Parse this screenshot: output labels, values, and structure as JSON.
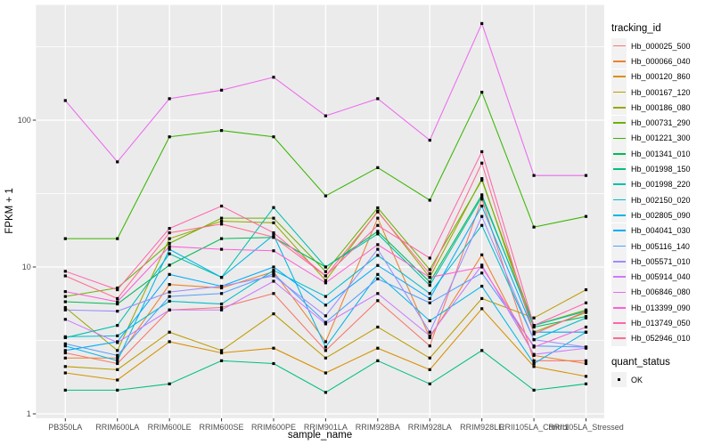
{
  "figure": {
    "background": "#FFFFFF",
    "panel_background": "#EBEBEB",
    "grid_color": "#FFFFFF",
    "tick_mark_color": "#333333",
    "tick_label_color": "#4D4D4D",
    "axis_title_color": "#000000",
    "legend_key_background": "#F2F2F2",
    "point_color": "#000000"
  },
  "chart_data": {
    "type": "line",
    "title": "",
    "xlabel": "sample_name",
    "ylabel": "FPKM + 1",
    "y_scale": "log10",
    "y_ticks": [
      1,
      10,
      100
    ],
    "y_tick_labels": [
      "1",
      "10",
      "100"
    ],
    "y_minor_ticks": [
      3.162,
      31.623,
      316.228
    ],
    "ylim": [
      1,
      600
    ],
    "grid": true,
    "legend_position": "right",
    "point_shape": "filled-square",
    "categories": [
      "PB350LA",
      "RRIM600LA",
      "RRIM600LE",
      "RRIM600SE",
      "RRIM600PE",
      "RRIM901LA",
      "RRIM928BA",
      "RRIM928LA",
      "RRIM928LE",
      "RRII105LA_Control",
      "RRII105LA_Stressed"
    ],
    "series": [
      {
        "name": "Hb_000025_500",
        "color": "#F8766D",
        "values": [
          2.6,
          2.2,
          5.1,
          5.3,
          6.6,
          2.7,
          5.9,
          2.9,
          29,
          2.3,
          2.3
        ]
      },
      {
        "name": "Hb_000066_040",
        "color": "#EA8331",
        "values": [
          2.4,
          2.4,
          7.6,
          7.2,
          9.3,
          3.1,
          21.5,
          3.3,
          12.1,
          2.5,
          2.2
        ]
      },
      {
        "name": "Hb_000120_860",
        "color": "#D89000",
        "values": [
          1.9,
          1.7,
          3.1,
          2.6,
          2.8,
          1.9,
          2.8,
          2.0,
          5.2,
          2.1,
          1.8
        ]
      },
      {
        "name": "Hb_000167_120",
        "color": "#BE9C00",
        "values": [
          2.1,
          2.0,
          3.6,
          2.7,
          4.8,
          2.4,
          3.9,
          2.4,
          6.1,
          4.5,
          7.0
        ]
      },
      {
        "name": "Hb_000186_080",
        "color": "#9CA700",
        "values": [
          5.3,
          2.7,
          15.6,
          20.5,
          20.0,
          8.1,
          24.0,
          8.5,
          40,
          3.6,
          4.9
        ]
      },
      {
        "name": "Hb_000731_290",
        "color": "#6FB000",
        "values": [
          6.3,
          7.2,
          14.5,
          21.5,
          21.5,
          9.3,
          25.3,
          9.6,
          39,
          4.0,
          5.1
        ]
      },
      {
        "name": "Hb_001221_300",
        "color": "#39B600",
        "values": [
          15.6,
          15.6,
          77,
          85,
          77,
          30.5,
          47.5,
          28.5,
          155,
          18.7,
          22.1
        ]
      },
      {
        "name": "Hb_001341_010",
        "color": "#00BA55",
        "values": [
          5.8,
          5.6,
          10.3,
          15.6,
          15.9,
          10.0,
          17.5,
          7.9,
          31,
          3.9,
          4.6
        ]
      },
      {
        "name": "Hb_001998_150",
        "color": "#00BF81",
        "values": [
          1.45,
          1.45,
          1.6,
          2.3,
          2.2,
          1.4,
          2.3,
          1.6,
          2.7,
          1.45,
          1.6
        ]
      },
      {
        "name": "Hb_001998_220",
        "color": "#00C0A9",
        "values": [
          3.3,
          4.0,
          12.3,
          8.5,
          25.4,
          10.0,
          16.8,
          7.5,
          30,
          4.0,
          5.0
        ]
      },
      {
        "name": "Hb_002150_020",
        "color": "#00BECA",
        "values": [
          3.35,
          3.4,
          5.85,
          5.6,
          9.5,
          6.3,
          12.0,
          6.6,
          19.2,
          3.2,
          4.5
        ]
      },
      {
        "name": "Hb_002805_090",
        "color": "#00B7E5",
        "values": [
          2.9,
          2.3,
          13.2,
          8.5,
          16.5,
          2.85,
          8.9,
          4.3,
          7.4,
          2.2,
          3.6
        ]
      },
      {
        "name": "Hb_004041_030",
        "color": "#00ABFD",
        "values": [
          2.7,
          3.1,
          8.9,
          7.4,
          10.0,
          5.5,
          10.25,
          6.1,
          26,
          3.6,
          3.6
        ]
      },
      {
        "name": "Hb_005116_140",
        "color": "#529EFF",
        "values": [
          3.0,
          2.5,
          6.3,
          6.6,
          9.0,
          4.2,
          8.3,
          5.7,
          9.1,
          2.9,
          2.85
        ]
      },
      {
        "name": "Hb_005571_010",
        "color": "#9C8DFF",
        "values": [
          5.1,
          5.0,
          6.75,
          7.4,
          8.7,
          4.65,
          13.2,
          3.6,
          22.1,
          3.2,
          2.85
        ]
      },
      {
        "name": "Hb_005914_040",
        "color": "#CE79FF",
        "values": [
          4.4,
          3.06,
          5.1,
          5.1,
          8.0,
          4.1,
          6.6,
          3.4,
          10.3,
          2.54,
          2.8
        ]
      },
      {
        "name": "Hb_006846_080",
        "color": "#EC69EF",
        "values": [
          136,
          52,
          140,
          160,
          196,
          107,
          140,
          73,
          455,
          42,
          42
        ]
      },
      {
        "name": "Hb_013399_090",
        "color": "#FB61D7",
        "values": [
          6.8,
          5.8,
          13.8,
          13.2,
          12.9,
          7.8,
          14.2,
          8.5,
          10.0,
          2.85,
          3.9
        ]
      },
      {
        "name": "Hb_013749_050",
        "color": "#FF65AC",
        "values": [
          9.35,
          7.0,
          18.3,
          26,
          17.1,
          8.7,
          19.2,
          11.5,
          61,
          4.0,
          5.7
        ]
      },
      {
        "name": "Hb_052946_010",
        "color": "#FF6C91",
        "values": [
          8.7,
          6.1,
          17.1,
          19.6,
          16.0,
          8.7,
          23.7,
          9.0,
          51,
          3.5,
          5.0
        ]
      }
    ]
  },
  "legend": {
    "tracking_title": "tracking_id",
    "quant_title": "quant_status",
    "quant_items": [
      {
        "label": "OK"
      }
    ]
  }
}
